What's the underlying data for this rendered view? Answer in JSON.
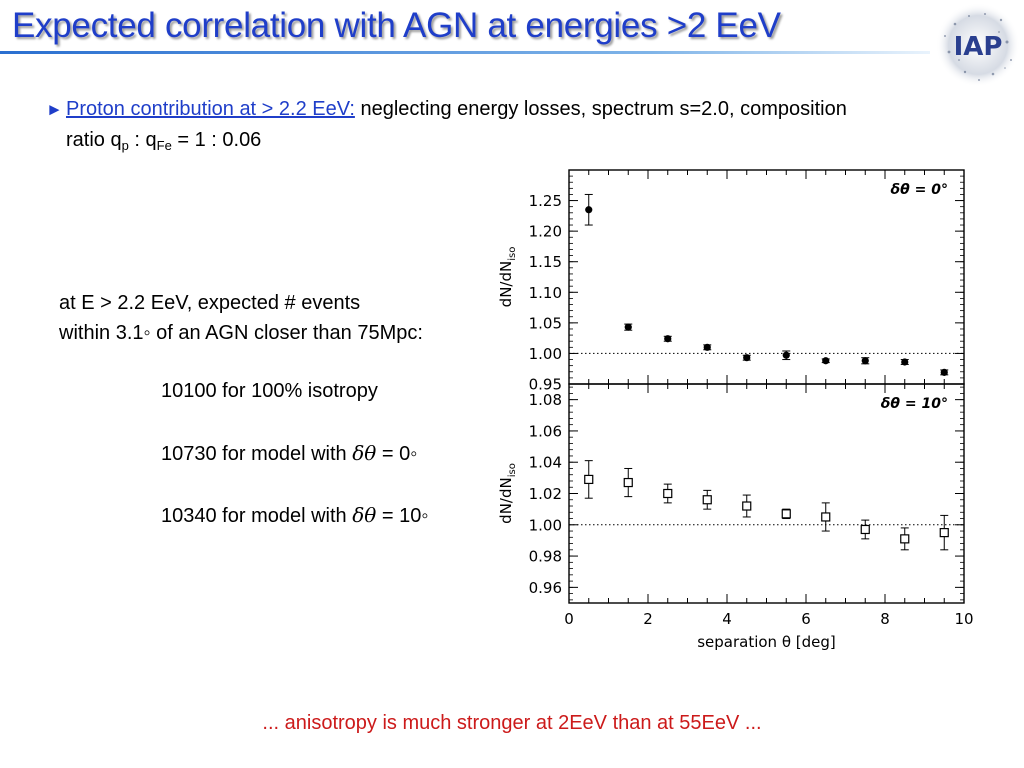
{
  "slide": {
    "title": "Expected correlation with AGN at energies >2 EeV",
    "logo_text": "IAP",
    "bullet": {
      "arrow": "►",
      "link": "Proton contribution at > 2.2 EeV:",
      "rest": " neglecting energy losses, spectrum s=2.0, composition",
      "line2_prefix": "ratio q",
      "sub_p": "p",
      "mid": " : q",
      "sub_fe": "Fe",
      "suffix": " = 1 : 0.06"
    },
    "info": {
      "line1": "at E > 2.2 EeV, expected # events",
      "line2": "within 3.1◦ of an AGN closer than 75Mpc:"
    },
    "results": [
      {
        "number": "10100",
        "text": " for 100% isotropy"
      },
      {
        "number": "10730",
        "text": " for model with ",
        "math": "δθ",
        "tail": " = 0◦"
      },
      {
        "number": "10340",
        "text": " for model with ",
        "math": "δθ",
        "tail": " = 10◦"
      }
    ],
    "footer": "... anisotropy is much stronger at 2EeV than at 55EeV ..."
  },
  "chart_data": [
    {
      "type": "scatter",
      "panel": "top",
      "annotation": "δθ = 0°",
      "ylabel": "dN/dN",
      "ylabel_sub": "iso",
      "marker": "filled-circle",
      "ylim": [
        0.95,
        1.3
      ],
      "yticks": [
        "0.95",
        "1.00",
        "1.05",
        "1.10",
        "1.15",
        "1.20",
        "1.25"
      ],
      "reference_line": 1.0,
      "x": [
        0.5,
        1.5,
        2.5,
        3.5,
        4.5,
        5.5,
        6.5,
        7.5,
        8.5,
        9.5
      ],
      "y": [
        1.235,
        1.043,
        1.024,
        1.01,
        0.993,
        0.997,
        0.988,
        0.988,
        0.986,
        0.969
      ],
      "err": [
        0.025,
        0.005,
        0.004,
        0.004,
        0.004,
        0.007,
        0.003,
        0.005,
        0.004,
        0.004
      ]
    },
    {
      "type": "scatter",
      "panel": "bottom",
      "annotation": "δθ = 10°",
      "ylabel": "dN/dN",
      "ylabel_sub": "iso",
      "marker": "open-square",
      "xlabel": "separation θ [deg]",
      "xlim": [
        0,
        10
      ],
      "xticks": [
        "0",
        "2",
        "4",
        "6",
        "8",
        "10"
      ],
      "ylim": [
        0.95,
        1.09
      ],
      "yticks": [
        "0.96",
        "0.98",
        "1.00",
        "1.02",
        "1.04",
        "1.06",
        "1.08"
      ],
      "reference_line": 1.0,
      "x": [
        0.5,
        1.5,
        2.5,
        3.5,
        4.5,
        5.5,
        6.5,
        7.5,
        8.5,
        9.5
      ],
      "y": [
        1.029,
        1.027,
        1.02,
        1.016,
        1.012,
        1.007,
        1.005,
        0.997,
        0.991,
        0.995
      ],
      "err": [
        0.012,
        0.009,
        0.006,
        0.006,
        0.007,
        0.003,
        0.009,
        0.006,
        0.007,
        0.011
      ]
    }
  ]
}
